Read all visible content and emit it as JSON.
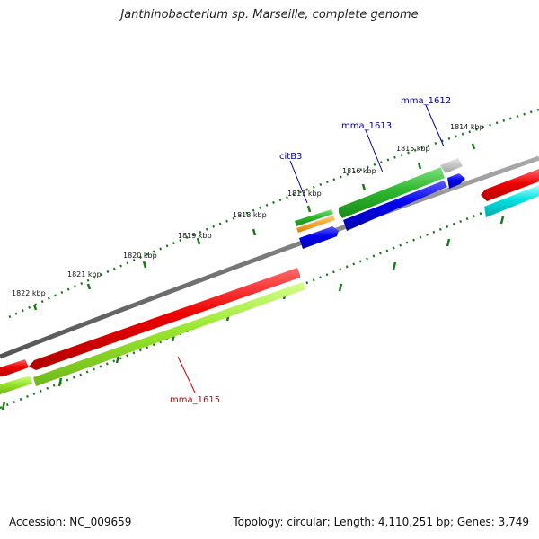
{
  "title": "Janthinobacterium sp. Marseille, complete genome",
  "footer": {
    "accession": "Accession: NC_009659",
    "stats": "Topology: circular; Length: 4,110,251 bp; Genes: 3,749"
  },
  "scale": {
    "labels": [
      "1814 kbp",
      "1815 kbp",
      "1816 kbp",
      "1817 kbp",
      "1818 kbp",
      "1819 kbp",
      "1820 kbp",
      "1821 kbp",
      "1822 kbp"
    ]
  },
  "genes": [
    {
      "name": "mma_1612",
      "color": "#00008b"
    },
    {
      "name": "mma_1613",
      "color": "#00008b"
    },
    {
      "name": "citB3",
      "color": "#00008b"
    },
    {
      "name": "mma_1615",
      "color": "#cc0000"
    }
  ],
  "colors": {
    "backbone": "#7f7f7f",
    "tick": "#1a7a1a",
    "red": "#ee0000",
    "lime": "#99e62e",
    "green": "#2eb82e",
    "blue": "#0000ee",
    "cyan": "#00dddd",
    "orange": "#ff9900",
    "grey": "#bbbbbb"
  }
}
